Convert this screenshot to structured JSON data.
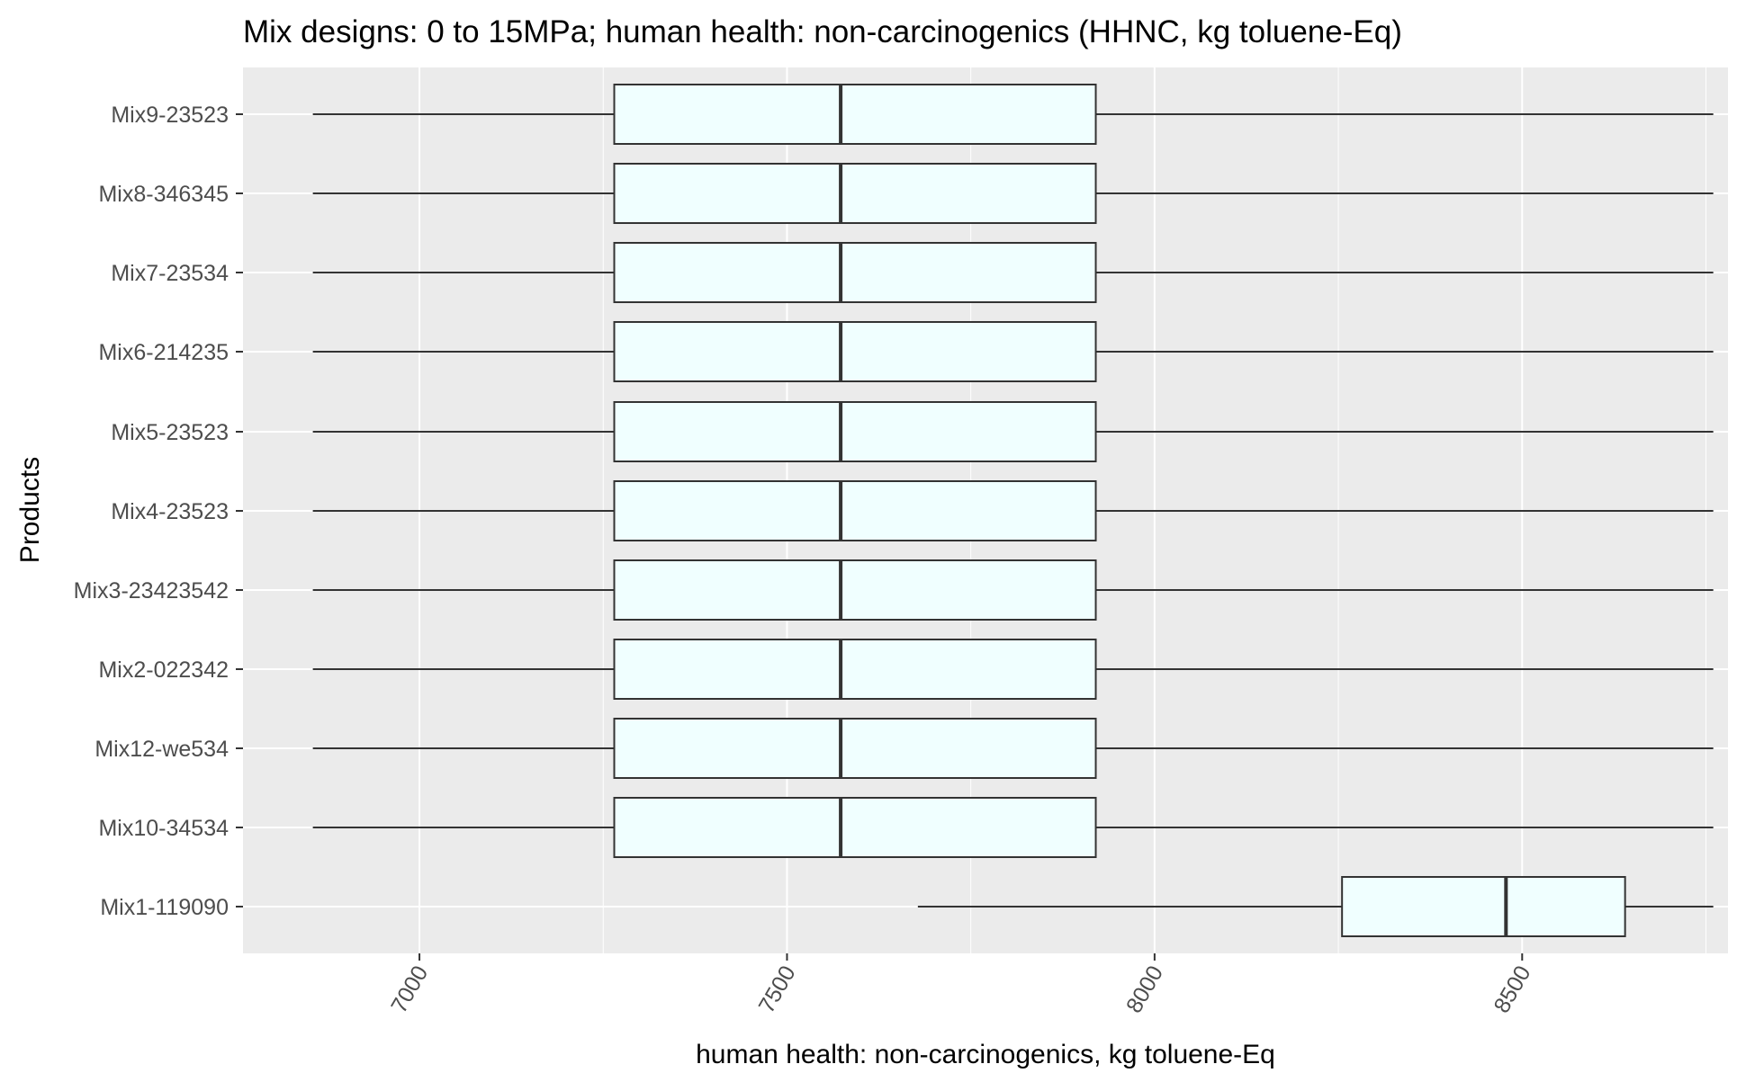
{
  "chart_data": {
    "type": "boxplot",
    "orientation": "horizontal",
    "title": "Mix designs: 0 to 15MPa; human health: non-carcinogenics (HHNC, kg toluene-Eq)",
    "xlabel": "human health: non-carcinogenics, kg toluene-Eq",
    "ylabel": "Products",
    "xlim": [
      6760,
      8780
    ],
    "x_ticks": [
      7000,
      7500,
      8000,
      8500
    ],
    "x_tick_labels": [
      "7000",
      "7500",
      "8000",
      "8500"
    ],
    "x_tick_label_rotation": -60,
    "grid": true,
    "panel_background": "#ebebeb",
    "box_fill": "#f0ffff",
    "box_stroke": "#333333",
    "categories": [
      "Mix9-23523",
      "Mix8-346345",
      "Mix7-23534",
      "Mix6-214235",
      "Mix5-23523",
      "Mix4-23523",
      "Mix3-23423542",
      "Mix2-022342",
      "Mix12-we534",
      "Mix10-34534",
      "Mix1-119090"
    ],
    "boxes": [
      {
        "category": "Mix9-23523",
        "min": 6855,
        "q1": 7265,
        "median": 7573,
        "q3": 7920,
        "max": 8760
      },
      {
        "category": "Mix8-346345",
        "min": 6855,
        "q1": 7265,
        "median": 7573,
        "q3": 7920,
        "max": 8760
      },
      {
        "category": "Mix7-23534",
        "min": 6855,
        "q1": 7265,
        "median": 7573,
        "q3": 7920,
        "max": 8760
      },
      {
        "category": "Mix6-214235",
        "min": 6855,
        "q1": 7265,
        "median": 7573,
        "q3": 7920,
        "max": 8760
      },
      {
        "category": "Mix5-23523",
        "min": 6855,
        "q1": 7265,
        "median": 7573,
        "q3": 7920,
        "max": 8760
      },
      {
        "category": "Mix4-23523",
        "min": 6855,
        "q1": 7265,
        "median": 7573,
        "q3": 7920,
        "max": 8760
      },
      {
        "category": "Mix3-23423542",
        "min": 6855,
        "q1": 7265,
        "median": 7573,
        "q3": 7920,
        "max": 8760
      },
      {
        "category": "Mix2-022342",
        "min": 6855,
        "q1": 7265,
        "median": 7573,
        "q3": 7920,
        "max": 8760
      },
      {
        "category": "Mix12-we534",
        "min": 6855,
        "q1": 7265,
        "median": 7573,
        "q3": 7920,
        "max": 8760
      },
      {
        "category": "Mix10-34534",
        "min": 6855,
        "q1": 7265,
        "median": 7573,
        "q3": 7920,
        "max": 8760
      },
      {
        "category": "Mix1-119090",
        "min": 7678,
        "q1": 8255,
        "median": 8478,
        "q3": 8640,
        "max": 8760
      }
    ]
  }
}
